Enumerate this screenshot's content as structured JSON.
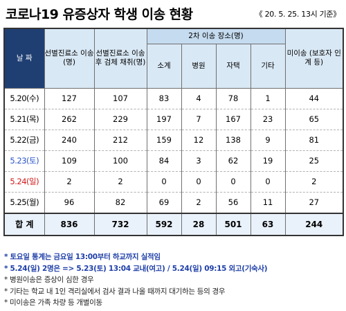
{
  "title": "코로나19 유증상자 학생 이송 현황",
  "subtitle": "《 20. 5. 25. 13시 기준》",
  "table": {
    "headers": {
      "date": "날 짜",
      "screening_transfer": "선별진료소 이송(명)",
      "screening_test": "선별진료소 이송 후 검체 채취(명)",
      "place_group": "2차 이송 장소(명)",
      "subtotal": "소계",
      "hospital": "병원",
      "home": "자택",
      "other": "기타",
      "not_transferred": "미이송 (보호자 인계 등)"
    },
    "rows": [
      {
        "date": "5.20(수)",
        "transfer": "127",
        "test": "107",
        "subtotal": "83",
        "hospital": "4",
        "home": "78",
        "other": "1",
        "not_transferred": "44"
      },
      {
        "date": "5.21(목)",
        "transfer": "262",
        "test": "229",
        "subtotal": "197",
        "hospital": "7",
        "home": "167",
        "other": "23",
        "not_transferred": "65"
      },
      {
        "date": "5.22(금)",
        "transfer": "240",
        "test": "212",
        "subtotal": "159",
        "hospital": "12",
        "home": "138",
        "other": "9",
        "not_transferred": "81"
      },
      {
        "date": "5.23(토)",
        "transfer": "109",
        "test": "100",
        "subtotal": "84",
        "hospital": "3",
        "home": "62",
        "other": "19",
        "not_transferred": "25"
      },
      {
        "date": "5.24(일)",
        "transfer": "2",
        "test": "2",
        "subtotal": "0",
        "hospital": "0",
        "home": "0",
        "other": "0",
        "not_transferred": "2"
      },
      {
        "date": "5.25(월)",
        "transfer": "96",
        "test": "82",
        "subtotal": "69",
        "hospital": "2",
        "home": "56",
        "other": "11",
        "not_transferred": "27"
      }
    ],
    "total": {
      "label": "합 계",
      "transfer": "836",
      "test": "732",
      "subtotal": "592",
      "hospital": "28",
      "home": "501",
      "other": "63",
      "not_transferred": "244"
    }
  },
  "notes": [
    "* 토요일 통계는 금요일 13:00부터 하교까지 실적임",
    "* 5.24(일) 2명은 => 5.23(토) 13:04 교내(여고) / 5.24(일) 09:15 외고(기숙사)",
    "* 병원이송은 증상이 심한 경우",
    "* 기타는 학교 내 1인 격리실에서 검사 결과 나올 때까지 대기하는 등의 경우",
    "* 미이송은 가족 차량 등 개별이동"
  ],
  "colors": {
    "header_dark": "#1f3f73",
    "header_light": "#d9e8f5",
    "saturday": "#2a55c8",
    "sunday": "#d11a1a",
    "note_blue": "#1e3fa8"
  }
}
